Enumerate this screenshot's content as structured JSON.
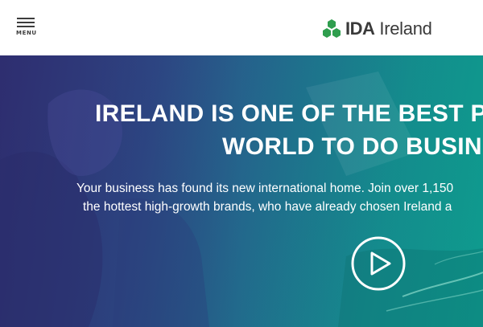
{
  "header": {
    "menu_label": "MENU",
    "logo": {
      "bold_text": "IDA",
      "text": "Ireland",
      "brand_color": "#2f9e4e",
      "icon": "hexagon-cluster-icon"
    }
  },
  "hero": {
    "title_line1": "IRELAND IS ONE OF THE BEST P",
    "title_line2": "WORLD TO DO BUSIN",
    "subtitle_line1": "Your business has found its new international home. Join over 1,150",
    "subtitle_line2": "the hottest high-growth brands, who have already chosen Ireland a",
    "play_icon": "play-icon"
  }
}
